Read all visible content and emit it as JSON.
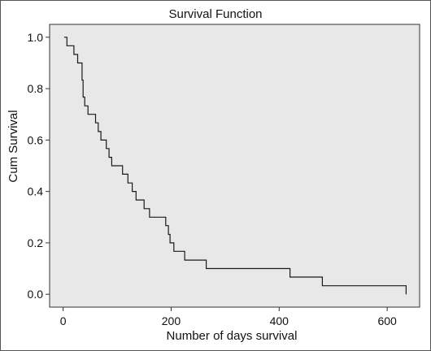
{
  "chart_data": {
    "type": "line",
    "title": "Survival Function",
    "xlabel": "Number of days survival",
    "ylabel": "Cum Survival",
    "xlim": [
      -25,
      660
    ],
    "ylim": [
      -0.05,
      1.05
    ],
    "x_ticks": [
      0,
      200,
      400,
      600
    ],
    "x_tick_labels": [
      "0",
      "200",
      "400",
      "600"
    ],
    "y_ticks": [
      0.0,
      0.2,
      0.4,
      0.6,
      0.8,
      1.0
    ],
    "y_tick_labels": [
      "0.0",
      "0.2",
      "0.4",
      "0.6",
      "0.8",
      "1.0"
    ],
    "grid": false,
    "background_color": "#e8e8e8",
    "line_color": "#1a1a1a",
    "series": [
      {
        "step": "post",
        "x": [
          2,
          7,
          20,
          27,
          35,
          37,
          40,
          46,
          60,
          65,
          70,
          80,
          85,
          90,
          110,
          120,
          128,
          135,
          150,
          160,
          190,
          195,
          198,
          205,
          220,
          225,
          240,
          260,
          265,
          415,
          420,
          475,
          480,
          635
        ],
        "y": [
          1.0,
          0.967,
          0.933,
          0.9,
          0.833,
          0.767,
          0.733,
          0.7,
          0.667,
          0.633,
          0.6,
          0.567,
          0.533,
          0.5,
          0.467,
          0.433,
          0.4,
          0.367,
          0.333,
          0.3,
          0.267,
          0.233,
          0.2,
          0.167,
          0.167,
          0.133,
          0.133,
          0.133,
          0.1,
          0.1,
          0.067,
          0.067,
          0.033,
          0.0
        ]
      }
    ]
  }
}
